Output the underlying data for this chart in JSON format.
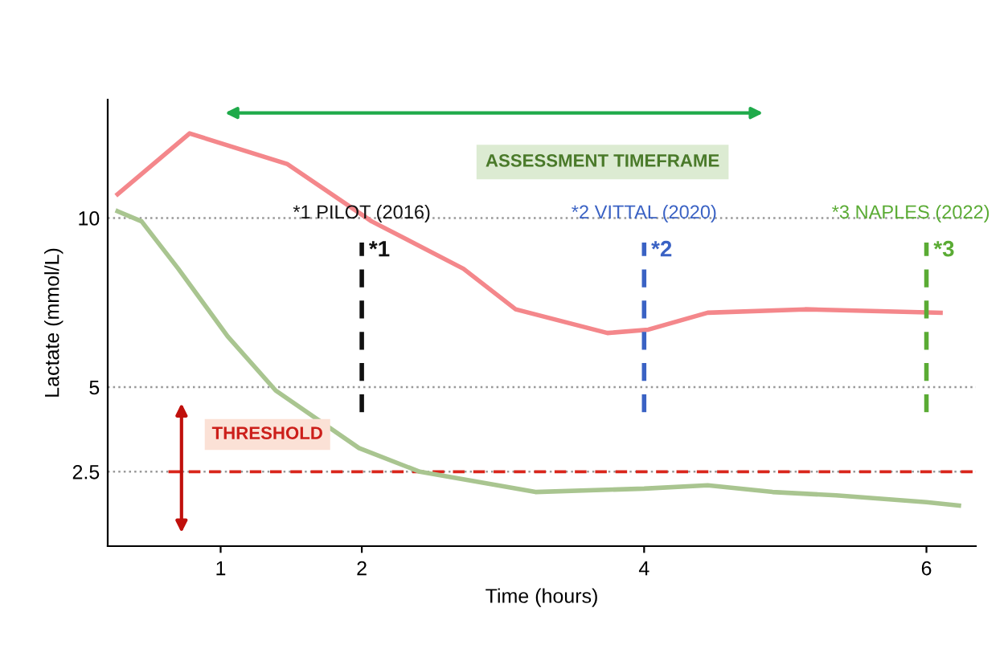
{
  "chart_data": {
    "type": "line",
    "xlabel": "Time (hours)",
    "ylabel": "Lactate (mmol/L)",
    "x": [
      0.27,
      0.78,
      1.47,
      2.07,
      2.72,
      3.09,
      3.74,
      4.03,
      4.45,
      5.14,
      6.1
    ],
    "series": [
      {
        "color": "#f4878b",
        "values": [
          10.7,
          12.5,
          11.6,
          9.9,
          8.5,
          7.3,
          6.6,
          6.7,
          7.2,
          7.3,
          7.2
        ]
      },
      {
        "color": "#a9c590",
        "x": [
          0.27,
          0.44,
          0.7,
          1.05,
          1.39,
          1.98,
          2.41,
          3.23,
          4.0,
          4.45,
          4.91,
          5.36,
          6.0,
          6.23
        ],
        "values": [
          10.2,
          9.9,
          8.5,
          6.5,
          4.9,
          3.2,
          2.5,
          1.9,
          2.0,
          2.1,
          1.9,
          1.8,
          1.6,
          1.5
        ]
      }
    ],
    "xlim": [
      0.2,
      6.35
    ],
    "ylim": [
      0.3,
      13.5
    ],
    "xticks": [
      1,
      2,
      4,
      6
    ],
    "yticks": [
      2.5,
      5,
      10
    ],
    "grid": "y",
    "marker": "none",
    "line_style": "solid",
    "ref_lines": [
      {
        "axis": "y",
        "value": 2.5,
        "color": "#d9261c",
        "line_style": "dashed"
      },
      {
        "axis": "x",
        "value": 2,
        "color": "#111111",
        "line_style": "dashed"
      },
      {
        "axis": "x",
        "value": 4,
        "color": "#3a62c4",
        "line_style": "dashed"
      },
      {
        "axis": "x",
        "value": 6,
        "color": "#5aab34",
        "line_style": "dashed"
      }
    ],
    "annotations": [
      "*1 PILOT (2016)",
      "*2 VITTAL (2020)",
      "*3 NAPLES (2022)",
      "*1",
      "*2",
      "*3",
      "ASSESSMENT TIMEFRAME",
      "THRESHOLD"
    ]
  }
}
